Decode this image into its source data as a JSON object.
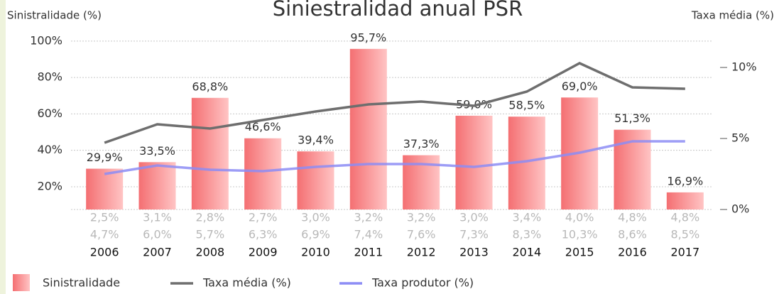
{
  "chart_data": {
    "type": "bar_line",
    "title": "Siniestralidad anual PSR",
    "y_label": "Sinistralidade (%)",
    "y2_label": "Taxa média (%)",
    "categories": [
      "2006",
      "2007",
      "2008",
      "2009",
      "2010",
      "2011",
      "2012",
      "2013",
      "2014",
      "2015",
      "2016",
      "2017"
    ],
    "series": [
      {
        "name": "Sinistralidade",
        "color": "#f46f72",
        "values": [
          29.9,
          33.5,
          68.8,
          46.6,
          39.4,
          95.7,
          37.3,
          59.0,
          58.5,
          69.0,
          51.3,
          16.9
        ],
        "value_labels": [
          "29,9%",
          "33,5%",
          "68,8%",
          "46,6%",
          "39,4%",
          "95,7%",
          "37,3%",
          "59,0%",
          "58,5%",
          "69,0%",
          "51,3%",
          "16,9%"
        ]
      },
      {
        "name": "Taxa média (%)",
        "color": "#6e6e6e",
        "axis": "y2",
        "values": [
          4.7,
          6.0,
          5.7,
          6.3,
          6.9,
          7.4,
          7.6,
          7.3,
          8.3,
          10.3,
          8.6,
          8.5
        ],
        "value_labels": [
          "4,7%",
          "6,0%",
          "5,7%",
          "6,3%",
          "6,9%",
          "7,4%",
          "7,6%",
          "7,3%",
          "8,3%",
          "10,3%",
          "8,6%",
          "8,5%"
        ]
      },
      {
        "name": "Taxa produtor (%)",
        "color": "#8c8cf5",
        "axis": "y2",
        "values": [
          2.5,
          3.1,
          2.8,
          2.7,
          3.0,
          3.2,
          3.2,
          3.0,
          3.4,
          4.0,
          4.8,
          4.8
        ],
        "value_labels": [
          "2,5%",
          "3,1%",
          "2,8%",
          "2,7%",
          "3,0%",
          "3,2%",
          "3,2%",
          "3,0%",
          "3,4%",
          "4,0%",
          "4,8%",
          "4,8%"
        ]
      }
    ],
    "ylim": [
      7.5,
      105
    ],
    "yticks": [
      {
        "value": 20,
        "label": "20%"
      },
      {
        "value": 40,
        "label": "40%"
      },
      {
        "value": 60,
        "label": "60%"
      },
      {
        "value": 80,
        "label": "80%"
      },
      {
        "value": 100,
        "label": "100%"
      }
    ],
    "y2lim": [
      0,
      12.5
    ],
    "y2ticks": [
      {
        "value": 0,
        "label": "0%"
      },
      {
        "value": 5,
        "label": "5%"
      },
      {
        "value": 10,
        "label": "10%"
      }
    ],
    "grid": true
  }
}
